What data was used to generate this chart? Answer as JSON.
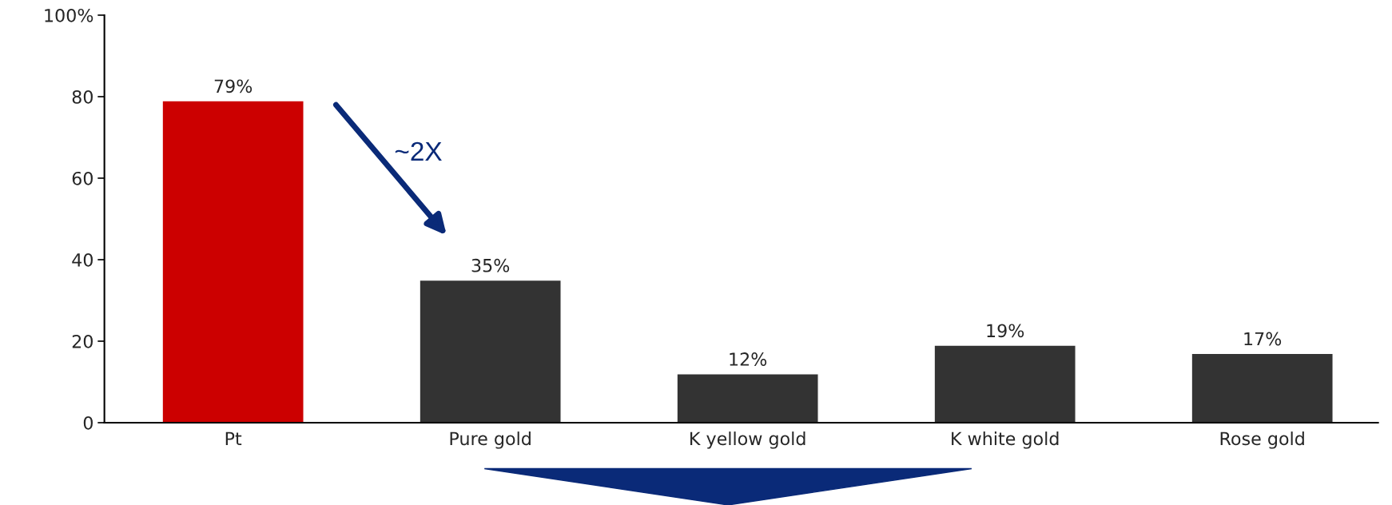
{
  "chart_data": {
    "type": "bar",
    "categories": [
      "Pt",
      "Pure gold",
      "K yellow gold",
      "K white gold",
      "Rose gold"
    ],
    "values": [
      79,
      35,
      12,
      19,
      17
    ],
    "colors": [
      "#cc0000",
      "#333333",
      "#333333",
      "#333333",
      "#333333"
    ],
    "value_labels": [
      "79%",
      "35%",
      "12%",
      "19%",
      "17%"
    ],
    "ylim": [
      0,
      100
    ],
    "yticks": [
      0,
      20,
      40,
      60,
      80,
      {
        "value": 100,
        "label": "100%"
      }
    ],
    "annotations": [
      "~2X"
    ],
    "grid": false,
    "legend": false
  }
}
